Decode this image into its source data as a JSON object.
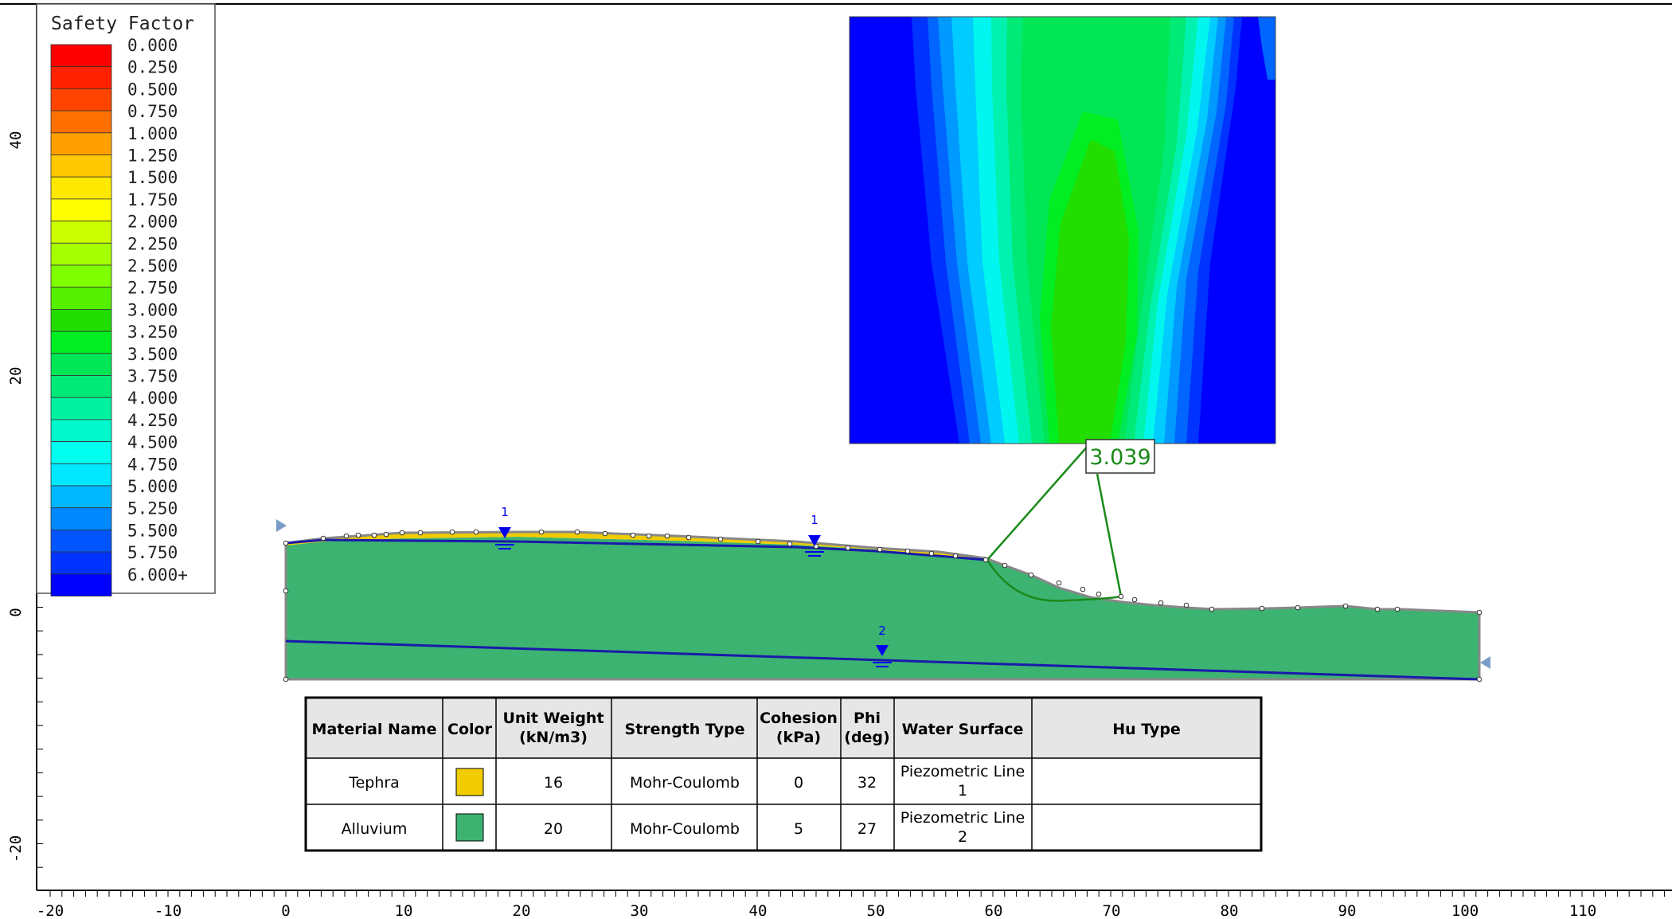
{
  "legend": {
    "title": "Safety Factor",
    "items": [
      {
        "label": "0.000",
        "color": "#ff0000"
      },
      {
        "label": "0.250",
        "color": "#ff2200"
      },
      {
        "label": "0.500",
        "color": "#ff4400"
      },
      {
        "label": "0.750",
        "color": "#ff7000"
      },
      {
        "label": "1.000",
        "color": "#ffa000"
      },
      {
        "label": "1.250",
        "color": "#ffc800"
      },
      {
        "label": "1.500",
        "color": "#ffe800"
      },
      {
        "label": "1.750",
        "color": "#ffff00"
      },
      {
        "label": "2.000",
        "color": "#ccff00"
      },
      {
        "label": "2.250",
        "color": "#a6ff00"
      },
      {
        "label": "2.500",
        "color": "#80ff00"
      },
      {
        "label": "2.750",
        "color": "#55f000"
      },
      {
        "label": "3.000",
        "color": "#22dd00"
      },
      {
        "label": "3.250",
        "color": "#00ee22"
      },
      {
        "label": "3.500",
        "color": "#00e655"
      },
      {
        "label": "3.750",
        "color": "#00ea77"
      },
      {
        "label": "4.000",
        "color": "#00f2a0"
      },
      {
        "label": "4.250",
        "color": "#00f8cc"
      },
      {
        "label": "4.500",
        "color": "#00ffee"
      },
      {
        "label": "4.750",
        "color": "#00e8ff"
      },
      {
        "label": "5.000",
        "color": "#00b8ff"
      },
      {
        "label": "5.250",
        "color": "#0088ff"
      },
      {
        "label": "5.500",
        "color": "#0055ff"
      },
      {
        "label": "5.750",
        "color": "#0033ff"
      },
      {
        "label": "6.000+",
        "color": "#0000ff"
      }
    ]
  },
  "axes": {
    "x_ticks": [
      "-20",
      "-10",
      "0",
      "10",
      "20",
      "30",
      "40",
      "50",
      "60",
      "70",
      "80",
      "90",
      "100",
      "110"
    ],
    "y_ticks": [
      "40",
      "20",
      "0",
      "-20"
    ]
  },
  "critical_surface": {
    "safety_factor": "3.039",
    "color": "#1a8a1a"
  },
  "water_tables": [
    {
      "label": "1"
    },
    {
      "label": "1"
    },
    {
      "label": "2"
    }
  ],
  "materials_table": {
    "headers": [
      "Material Name",
      "Color",
      "Unit Weight (kN/m3)",
      "Strength Type",
      "Cohesion (kPa)",
      "Phi (deg)",
      "Water Surface",
      "Hu Type"
    ],
    "rows": [
      {
        "name": "Tephra",
        "color": "#f0cc00",
        "unit_weight": "16",
        "strength_type": "Mohr-Coulomb",
        "cohesion": "0",
        "phi": "32",
        "water_surface": "Piezometric Line 1",
        "hu_type": ""
      },
      {
        "name": "Alluvium",
        "color": "#3cb371",
        "unit_weight": "20",
        "strength_type": "Mohr-Coulomb",
        "cohesion": "5",
        "phi": "27",
        "water_surface": "Piezometric Line 2",
        "hu_type": ""
      }
    ]
  }
}
